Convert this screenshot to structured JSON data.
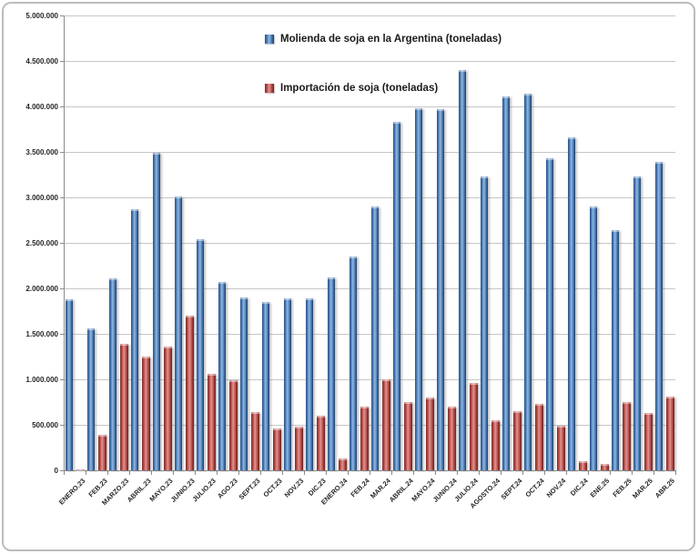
{
  "accent_colors": {
    "molienda_blue": "#4F81BD",
    "importacion_red": "#C0504D"
  },
  "chart_data": {
    "type": "bar",
    "title": "",
    "xlabel": "",
    "ylabel": "",
    "ylim": [
      0,
      5000000
    ],
    "grid": true,
    "legend_position": "top-center-inside",
    "y_tick_labels": [
      "5.000.000",
      "4.500.000",
      "4.000.000",
      "3.500.000",
      "3.000.000",
      "2.500.000",
      "2.000.000",
      "1.500.000",
      "1.000.000",
      "500.000",
      "0"
    ],
    "categories": [
      "ENERO.23",
      "FEB.23",
      "MARZO.23",
      "ABRIL.23",
      "MAYO.23",
      "JUNIO.23",
      "JULIO.23",
      "AGO.23",
      "SEPT.23",
      "OCT.23",
      "NOV.23",
      "DIC.23",
      "ENERO.24",
      "FEB.24",
      "MAR.24",
      "ABRIL.24",
      "MAYO.24",
      "JUNIO.24",
      "JULIO.24",
      "AGOSTO.24",
      "SEPT.24",
      "OCT.24",
      "NOV.24",
      "DIC.24",
      "ENE.25",
      "FEB.25",
      "MAR.25",
      "ABR.25"
    ],
    "series": [
      {
        "name": "Molienda de soja en la Argentina (toneladas)",
        "color": "#4F81BD",
        "values": [
          1880000,
          1560000,
          2110000,
          2870000,
          3490000,
          3010000,
          2540000,
          2070000,
          1900000,
          1850000,
          1890000,
          1890000,
          2120000,
          2350000,
          2900000,
          3830000,
          3980000,
          3970000,
          4400000,
          3230000,
          4110000,
          4140000,
          3430000,
          3660000,
          2900000,
          2640000,
          3230000,
          3390000
        ]
      },
      {
        "name": "Importación de soja (toneladas)",
        "color": "#C0504D",
        "values": [
          15000,
          390000,
          1390000,
          1250000,
          1360000,
          1700000,
          1060000,
          990000,
          640000,
          460000,
          480000,
          600000,
          130000,
          700000,
          1000000,
          750000,
          800000,
          700000,
          960000,
          550000,
          650000,
          730000,
          490000,
          100000,
          70000,
          750000,
          630000,
          810000
        ]
      }
    ]
  }
}
